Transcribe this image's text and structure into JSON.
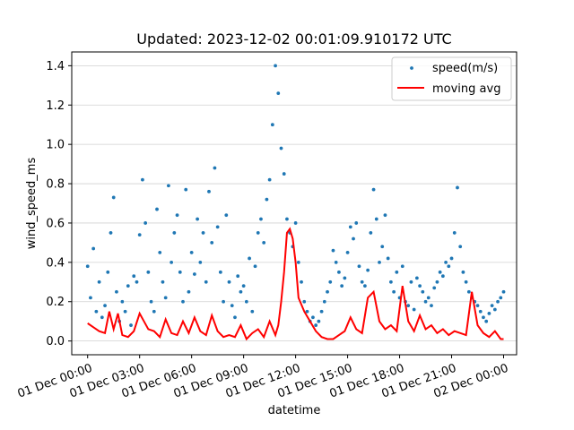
{
  "chart_data": {
    "type": "scatter",
    "title": "Updated: 2023-12-02 00:01:09.910172 UTC",
    "xlabel": "datetime",
    "ylabel": "wind_speed_ms",
    "xlim": [
      "2023-11-30T23:05:00",
      "2023-12-02T00:45:00"
    ],
    "ylim": [
      -0.07,
      1.47
    ],
    "grid": "y",
    "legend_position": "top-right",
    "x_ticks": [
      "01 Dec 00:00",
      "01 Dec 03:00",
      "01 Dec 06:00",
      "01 Dec 09:00",
      "01 Dec 12:00",
      "01 Dec 15:00",
      "01 Dec 18:00",
      "01 Dec 21:00",
      "02 Dec 00:00"
    ],
    "x_tick_times": [
      "2023-12-01T00:00:00",
      "2023-12-01T03:00:00",
      "2023-12-01T06:00:00",
      "2023-12-01T09:00:00",
      "2023-12-01T12:00:00",
      "2023-12-01T15:00:00",
      "2023-12-01T18:00:00",
      "2023-12-01T21:00:00",
      "2023-12-02T00:00:00"
    ],
    "y_ticks": [
      0.0,
      0.2,
      0.4,
      0.6,
      0.8,
      1.0,
      1.2,
      1.4
    ],
    "y_tick_labels": [
      "0.0",
      "0.2",
      "0.4",
      "0.6",
      "0.8",
      "1.0",
      "1.2",
      "1.4"
    ],
    "series": [
      {
        "name": "speed(m/s)",
        "kind": "scatter",
        "color": "#1f77b4",
        "x": [
          "2023-12-01T00:00:00",
          "2023-12-01T00:10:00",
          "2023-12-01T00:20:00",
          "2023-12-01T00:30:00",
          "2023-12-01T00:40:00",
          "2023-12-01T00:50:00",
          "2023-12-01T01:00:00",
          "2023-12-01T01:10:00",
          "2023-12-01T01:20:00",
          "2023-12-01T01:30:00",
          "2023-12-01T01:40:00",
          "2023-12-01T01:50:00",
          "2023-12-01T02:00:00",
          "2023-12-01T02:10:00",
          "2023-12-01T02:20:00",
          "2023-12-01T02:30:00",
          "2023-12-01T02:40:00",
          "2023-12-01T02:50:00",
          "2023-12-01T03:00:00",
          "2023-12-01T03:10:00",
          "2023-12-01T03:20:00",
          "2023-12-01T03:30:00",
          "2023-12-01T03:40:00",
          "2023-12-01T03:50:00",
          "2023-12-01T04:00:00",
          "2023-12-01T04:10:00",
          "2023-12-01T04:20:00",
          "2023-12-01T04:30:00",
          "2023-12-01T04:40:00",
          "2023-12-01T04:50:00",
          "2023-12-01T05:00:00",
          "2023-12-01T05:10:00",
          "2023-12-01T05:20:00",
          "2023-12-01T05:30:00",
          "2023-12-01T05:40:00",
          "2023-12-01T05:50:00",
          "2023-12-01T06:00:00",
          "2023-12-01T06:10:00",
          "2023-12-01T06:20:00",
          "2023-12-01T06:30:00",
          "2023-12-01T06:40:00",
          "2023-12-01T06:50:00",
          "2023-12-01T07:00:00",
          "2023-12-01T07:10:00",
          "2023-12-01T07:20:00",
          "2023-12-01T07:30:00",
          "2023-12-01T07:40:00",
          "2023-12-01T07:50:00",
          "2023-12-01T08:00:00",
          "2023-12-01T08:10:00",
          "2023-12-01T08:20:00",
          "2023-12-01T08:30:00",
          "2023-12-01T08:40:00",
          "2023-12-01T08:50:00",
          "2023-12-01T09:00:00",
          "2023-12-01T09:10:00",
          "2023-12-01T09:20:00",
          "2023-12-01T09:30:00",
          "2023-12-01T09:40:00",
          "2023-12-01T09:50:00",
          "2023-12-01T10:00:00",
          "2023-12-01T10:10:00",
          "2023-12-01T10:20:00",
          "2023-12-01T10:30:00",
          "2023-12-01T10:40:00",
          "2023-12-01T10:50:00",
          "2023-12-01T11:00:00",
          "2023-12-01T11:10:00",
          "2023-12-01T11:20:00",
          "2023-12-01T11:30:00",
          "2023-12-01T11:40:00",
          "2023-12-01T11:50:00",
          "2023-12-01T12:00:00",
          "2023-12-01T12:10:00",
          "2023-12-01T12:20:00",
          "2023-12-01T12:30:00",
          "2023-12-01T12:40:00",
          "2023-12-01T12:50:00",
          "2023-12-01T13:00:00",
          "2023-12-01T13:10:00",
          "2023-12-01T13:20:00",
          "2023-12-01T13:30:00",
          "2023-12-01T13:40:00",
          "2023-12-01T13:50:00",
          "2023-12-01T14:00:00",
          "2023-12-01T14:10:00",
          "2023-12-01T14:20:00",
          "2023-12-01T14:30:00",
          "2023-12-01T14:40:00",
          "2023-12-01T14:50:00",
          "2023-12-01T15:00:00",
          "2023-12-01T15:10:00",
          "2023-12-01T15:20:00",
          "2023-12-01T15:30:00",
          "2023-12-01T15:40:00",
          "2023-12-01T15:50:00",
          "2023-12-01T16:00:00",
          "2023-12-01T16:10:00",
          "2023-12-01T16:20:00",
          "2023-12-01T16:30:00",
          "2023-12-01T16:40:00",
          "2023-12-01T16:50:00",
          "2023-12-01T17:00:00",
          "2023-12-01T17:10:00",
          "2023-12-01T17:20:00",
          "2023-12-01T17:30:00",
          "2023-12-01T17:40:00",
          "2023-12-01T17:50:00",
          "2023-12-01T18:00:00",
          "2023-12-01T18:10:00",
          "2023-12-01T18:20:00",
          "2023-12-01T18:30:00",
          "2023-12-01T18:40:00",
          "2023-12-01T18:50:00",
          "2023-12-01T19:00:00",
          "2023-12-01T19:10:00",
          "2023-12-01T19:20:00",
          "2023-12-01T19:30:00",
          "2023-12-01T19:40:00",
          "2023-12-01T19:50:00",
          "2023-12-01T20:00:00",
          "2023-12-01T20:10:00",
          "2023-12-01T20:20:00",
          "2023-12-01T20:30:00",
          "2023-12-01T20:40:00",
          "2023-12-01T20:50:00",
          "2023-12-01T21:00:00",
          "2023-12-01T21:10:00",
          "2023-12-01T21:20:00",
          "2023-12-01T21:30:00",
          "2023-12-01T21:40:00",
          "2023-12-01T21:50:00",
          "2023-12-01T22:00:00",
          "2023-12-01T22:10:00",
          "2023-12-01T22:20:00",
          "2023-12-01T22:30:00",
          "2023-12-01T22:40:00",
          "2023-12-01T22:50:00",
          "2023-12-01T23:00:00",
          "2023-12-01T23:10:00",
          "2023-12-01T23:20:00",
          "2023-12-01T23:30:00",
          "2023-12-01T23:40:00",
          "2023-12-01T23:50:00",
          "2023-12-02T00:00:00"
        ],
        "y": [
          0.38,
          0.22,
          0.47,
          0.15,
          0.3,
          0.12,
          0.18,
          0.35,
          0.55,
          0.73,
          0.25,
          0.1,
          0.2,
          0.15,
          0.28,
          0.08,
          0.33,
          0.3,
          0.54,
          0.82,
          0.6,
          0.35,
          0.2,
          0.15,
          0.67,
          0.45,
          0.3,
          0.22,
          0.79,
          0.4,
          0.55,
          0.64,
          0.35,
          0.2,
          0.77,
          0.25,
          0.45,
          0.34,
          0.62,
          0.4,
          0.55,
          0.3,
          0.76,
          0.5,
          0.88,
          0.58,
          0.35,
          0.2,
          0.64,
          0.3,
          0.18,
          0.12,
          0.33,
          0.25,
          0.28,
          0.2,
          0.42,
          0.15,
          0.38,
          0.55,
          0.62,
          0.5,
          0.72,
          0.82,
          1.1,
          1.4,
          1.26,
          0.98,
          0.85,
          0.62,
          0.55,
          0.48,
          0.6,
          0.4,
          0.3,
          0.2,
          0.15,
          0.1,
          0.12,
          0.08,
          0.1,
          0.15,
          0.2,
          0.25,
          0.3,
          0.46,
          0.4,
          0.35,
          0.28,
          0.32,
          0.45,
          0.58,
          0.52,
          0.6,
          0.38,
          0.3,
          0.28,
          0.36,
          0.55,
          0.77,
          0.62,
          0.4,
          0.48,
          0.64,
          0.42,
          0.3,
          0.25,
          0.35,
          0.22,
          0.38,
          0.2,
          0.18,
          0.3,
          0.16,
          0.32,
          0.28,
          0.25,
          0.2,
          0.22,
          0.18,
          0.27,
          0.3,
          0.35,
          0.33,
          0.4,
          0.38,
          0.42,
          0.55,
          0.78,
          0.48,
          0.35,
          0.3,
          0.25,
          0.22,
          0.2,
          0.18,
          0.15,
          0.12,
          0.1,
          0.14,
          0.18,
          0.16,
          0.2,
          0.22,
          0.25
        ]
      },
      {
        "name": "moving avg",
        "kind": "line",
        "color": "#ff0000",
        "x": [
          "2023-12-01T00:00:00",
          "2023-12-01T00:20:00",
          "2023-12-01T00:40:00",
          "2023-12-01T01:00:00",
          "2023-12-01T01:15:00",
          "2023-12-01T01:30:00",
          "2023-12-01T01:45:00",
          "2023-12-01T02:00:00",
          "2023-12-01T02:20:00",
          "2023-12-01T02:40:00",
          "2023-12-01T03:00:00",
          "2023-12-01T03:15:00",
          "2023-12-01T03:30:00",
          "2023-12-01T03:50:00",
          "2023-12-01T04:10:00",
          "2023-12-01T04:30:00",
          "2023-12-01T04:50:00",
          "2023-12-01T05:10:00",
          "2023-12-01T05:30:00",
          "2023-12-01T05:50:00",
          "2023-12-01T06:10:00",
          "2023-12-01T06:30:00",
          "2023-12-01T06:50:00",
          "2023-12-01T07:10:00",
          "2023-12-01T07:30:00",
          "2023-12-01T07:50:00",
          "2023-12-01T08:10:00",
          "2023-12-01T08:30:00",
          "2023-12-01T08:50:00",
          "2023-12-01T09:10:00",
          "2023-12-01T09:30:00",
          "2023-12-01T09:50:00",
          "2023-12-01T10:10:00",
          "2023-12-01T10:30:00",
          "2023-12-01T10:50:00",
          "2023-12-01T11:00:00",
          "2023-12-01T11:10:00",
          "2023-12-01T11:20:00",
          "2023-12-01T11:30:00",
          "2023-12-01T11:40:00",
          "2023-12-01T11:50:00",
          "2023-12-01T12:00:00",
          "2023-12-01T12:10:00",
          "2023-12-01T12:30:00",
          "2023-12-01T12:50:00",
          "2023-12-01T13:10:00",
          "2023-12-01T13:30:00",
          "2023-12-01T13:50:00",
          "2023-12-01T14:10:00",
          "2023-12-01T14:30:00",
          "2023-12-01T14:50:00",
          "2023-12-01T15:10:00",
          "2023-12-01T15:30:00",
          "2023-12-01T15:50:00",
          "2023-12-01T16:10:00",
          "2023-12-01T16:30:00",
          "2023-12-01T16:50:00",
          "2023-12-01T17:10:00",
          "2023-12-01T17:30:00",
          "2023-12-01T17:50:00",
          "2023-12-01T18:10:00",
          "2023-12-01T18:30:00",
          "2023-12-01T18:50:00",
          "2023-12-01T19:10:00",
          "2023-12-01T19:30:00",
          "2023-12-01T19:50:00",
          "2023-12-01T20:10:00",
          "2023-12-01T20:30:00",
          "2023-12-01T20:50:00",
          "2023-12-01T21:10:00",
          "2023-12-01T21:30:00",
          "2023-12-01T21:50:00",
          "2023-12-01T22:10:00",
          "2023-12-01T22:30:00",
          "2023-12-01T22:50:00",
          "2023-12-01T23:10:00",
          "2023-12-01T23:30:00",
          "2023-12-01T23:50:00",
          "2023-12-02T00:00:00"
        ],
        "y": [
          0.09,
          0.07,
          0.05,
          0.04,
          0.15,
          0.06,
          0.14,
          0.03,
          0.02,
          0.05,
          0.14,
          0.1,
          0.06,
          0.05,
          0.02,
          0.11,
          0.04,
          0.03,
          0.1,
          0.04,
          0.12,
          0.05,
          0.03,
          0.13,
          0.05,
          0.02,
          0.03,
          0.02,
          0.08,
          0.01,
          0.04,
          0.06,
          0.02,
          0.1,
          0.03,
          0.08,
          0.2,
          0.35,
          0.55,
          0.57,
          0.52,
          0.4,
          0.22,
          0.15,
          0.1,
          0.05,
          0.02,
          0.01,
          0.01,
          0.03,
          0.05,
          0.12,
          0.06,
          0.04,
          0.22,
          0.25,
          0.1,
          0.06,
          0.08,
          0.05,
          0.28,
          0.1,
          0.05,
          0.13,
          0.06,
          0.08,
          0.04,
          0.06,
          0.03,
          0.05,
          0.04,
          0.03,
          0.25,
          0.08,
          0.04,
          0.02,
          0.05,
          0.01,
          0.01
        ]
      }
    ]
  }
}
